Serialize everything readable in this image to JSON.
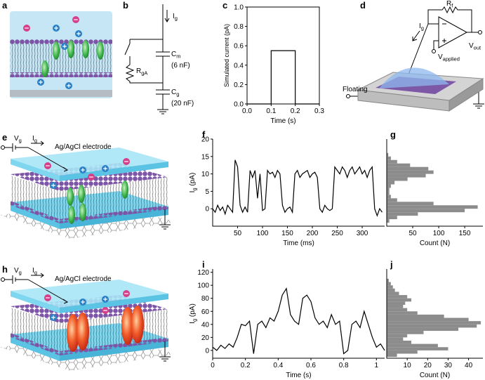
{
  "chart_data": [
    {
      "type": "line",
      "panel": "c",
      "frame": "box",
      "xlabel": "Time (s)",
      "ylabel": "Simulated current (pA)",
      "x": [
        0,
        0.1,
        0.1,
        0.2,
        0.2,
        0.3
      ],
      "series": [
        {
          "color": "#000000",
          "values": [
            0,
            0,
            0.55,
            0.55,
            0,
            0
          ]
        }
      ],
      "xlim": [
        0,
        0.3
      ],
      "ylim": [
        0,
        1.0
      ],
      "xticks": [
        {
          "value": 0,
          "label": "0.0"
        },
        0.1,
        0.2,
        0.3
      ],
      "yticks": [
        {
          "value": 0,
          "label": "0.0"
        },
        0.2,
        0.4,
        0.6,
        0.8,
        {
          "value": 1,
          "label": "1.0"
        }
      ]
    },
    {
      "type": "line",
      "panel": "f",
      "xlabel": "Time (ms)",
      "ylabel": {
        "text": "I",
        "sub": "g",
        "rest": " (pA)"
      },
      "x": [
        0,
        5,
        10,
        15,
        20,
        25,
        30,
        35,
        40,
        45,
        50,
        55,
        60,
        65,
        70,
        75,
        80,
        85,
        90,
        95,
        100,
        105,
        110,
        115,
        120,
        125,
        130,
        135,
        140,
        145,
        150,
        155,
        160,
        165,
        170,
        175,
        180,
        185,
        190,
        195,
        200,
        205,
        210,
        215,
        220,
        225,
        230,
        235,
        240,
        245,
        250,
        255,
        260,
        265,
        270,
        275,
        280,
        285,
        290,
        295,
        300,
        305,
        310,
        315,
        320,
        325,
        330,
        335,
        340
      ],
      "series": [
        {
          "color": "#000000",
          "values": [
            0,
            -1,
            1,
            -0.5,
            0.5,
            -1.5,
            1,
            0,
            -1,
            14,
            12,
            1,
            -1,
            0.5,
            -1,
            11,
            9,
            11,
            3,
            10,
            -0.5,
            0,
            11,
            10,
            10.5,
            9,
            11,
            10,
            1,
            -1,
            0,
            0.5,
            -1,
            10,
            11,
            9,
            10,
            10.5,
            11,
            9,
            10,
            10.5,
            9,
            0,
            -1,
            1,
            0,
            -0.5,
            0,
            12,
            11,
            10,
            12,
            11,
            9,
            11,
            12,
            10,
            11,
            12,
            10,
            11,
            9,
            11,
            12,
            0,
            -2,
            0,
            -1
          ]
        }
      ],
      "xlim": [
        0,
        345
      ],
      "ylim": [
        -5,
        20
      ],
      "xticks": [
        50,
        100,
        150,
        200,
        250,
        300
      ],
      "yticks": [
        0,
        5,
        10,
        15,
        20
      ]
    },
    {
      "type": "histogram",
      "panel": "g",
      "orientation": "horizontal",
      "xlabel": "Count (N)",
      "color": "#8c8c8c",
      "bins": [
        -4,
        -3,
        -2,
        -1,
        0,
        1,
        2,
        3,
        4,
        5,
        6,
        7,
        8,
        9,
        10,
        11,
        12,
        13,
        14,
        15,
        16
      ],
      "values": [
        5,
        20,
        60,
        150,
        175,
        90,
        20,
        8,
        5,
        5,
        8,
        15,
        40,
        75,
        90,
        80,
        45,
        20,
        8,
        3
      ],
      "xlim": [
        0,
        185
      ],
      "ylim": [
        -5,
        20
      ],
      "xticks": [
        50,
        100,
        150
      ]
    },
    {
      "type": "line",
      "panel": "i",
      "xlabel": "Time (s)",
      "ylabel": {
        "text": "I",
        "sub": "g",
        "rest": " (pA)"
      },
      "x": [
        0,
        0.025,
        0.05,
        0.075,
        0.1,
        0.125,
        0.15,
        0.175,
        0.2,
        0.225,
        0.25,
        0.275,
        0.3,
        0.325,
        0.35,
        0.375,
        0.4,
        0.425,
        0.45,
        0.475,
        0.5,
        0.525,
        0.55,
        0.575,
        0.6,
        0.625,
        0.65,
        0.675,
        0.7,
        0.725,
        0.75,
        0.775,
        0.8,
        0.825,
        0.85,
        0.875,
        0.9,
        0.925,
        0.95,
        0.975,
        1.0,
        1.025,
        1.05
      ],
      "series": [
        {
          "color": "#000000",
          "values": [
            5,
            0,
            8,
            3,
            10,
            5,
            20,
            40,
            38,
            45,
            -5,
            40,
            45,
            35,
            50,
            45,
            60,
            85,
            95,
            55,
            45,
            40,
            80,
            85,
            75,
            50,
            40,
            45,
            35,
            55,
            40,
            45,
            -5,
            0,
            40,
            45,
            35,
            60,
            40,
            20,
            5,
            10,
            0
          ]
        }
      ],
      "xlim": [
        0,
        1.05
      ],
      "ylim": [
        -12,
        125
      ],
      "xticks": [
        0,
        0.2,
        0.4,
        0.6,
        0.8,
        1
      ],
      "yticks": [
        0,
        20,
        40,
        60,
        80,
        100,
        120
      ]
    },
    {
      "type": "histogram",
      "panel": "j",
      "orientation": "horizontal",
      "xlabel": "Count (N)",
      "color": "#8c8c8c",
      "bins": [
        -10,
        -5,
        0,
        5,
        10,
        15,
        20,
        25,
        30,
        35,
        40,
        45,
        50,
        55,
        60,
        65,
        70,
        75,
        80,
        85,
        90,
        95,
        100,
        105,
        110
      ],
      "values": [
        5,
        15,
        30,
        25,
        12,
        8,
        10,
        18,
        35,
        44,
        46,
        40,
        28,
        15,
        10,
        8,
        9,
        12,
        10,
        6,
        4,
        3,
        2,
        1
      ],
      "xlim": [
        0,
        47
      ],
      "ylim": [
        -12,
        125
      ],
      "xticks": [
        10,
        20,
        30,
        40
      ]
    }
  ],
  "schematics": {
    "a": {
      "panel": "a"
    },
    "b": {
      "panel": "b",
      "current": {
        "text": "I",
        "sub": "g"
      },
      "cm": {
        "text": "C",
        "sub": "m"
      },
      "cm_value": "(6 nF)",
      "rga": {
        "text": "R",
        "sub": "gA"
      },
      "cg": {
        "text": "C",
        "sub": "g"
      },
      "cg_value": "(20 nF)"
    },
    "d": {
      "panel": "d",
      "rf": {
        "text": "R",
        "sub": "f"
      },
      "current": {
        "text": "I",
        "sub": "g"
      },
      "vout": {
        "text": "V",
        "sub": "out"
      },
      "vapplied": {
        "text": "V",
        "sub": "applied"
      },
      "floating": "Floating"
    },
    "e": {
      "panel": "e",
      "vg": {
        "text": "V",
        "sub": "g"
      },
      "current": {
        "text": "I",
        "sub": "g"
      },
      "electrode": "Ag/AgCl electrode"
    },
    "h": {
      "panel": "h",
      "vg": {
        "text": "V",
        "sub": "g"
      },
      "current": {
        "text": "I",
        "sub": "g"
      },
      "electrode": "Ag/AgCl electrode"
    }
  }
}
